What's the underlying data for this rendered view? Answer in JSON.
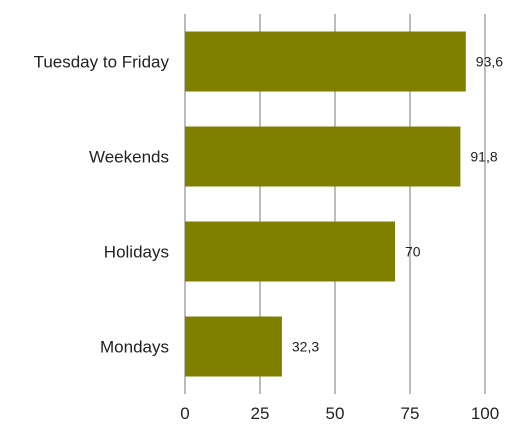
{
  "chart_data": {
    "type": "bar",
    "orientation": "horizontal",
    "categories": [
      "Tuesday to Friday",
      "Weekends",
      "Holidays",
      "Mondays"
    ],
    "values": [
      93.6,
      91.8,
      70,
      32.3
    ],
    "value_labels": [
      "93,6",
      "91,8",
      "70",
      "32,3"
    ],
    "xlim": [
      0,
      100
    ],
    "x_ticks": [
      0,
      25,
      50,
      75,
      100
    ],
    "x_tick_labels": [
      "0",
      "25",
      "50",
      "75",
      "100"
    ],
    "title": "",
    "xlabel": "",
    "ylabel": "",
    "grid": "vertical",
    "legend": "none",
    "colors": {
      "bar": "#808000",
      "grid": "#7a7a7a",
      "text": "#222222"
    }
  }
}
